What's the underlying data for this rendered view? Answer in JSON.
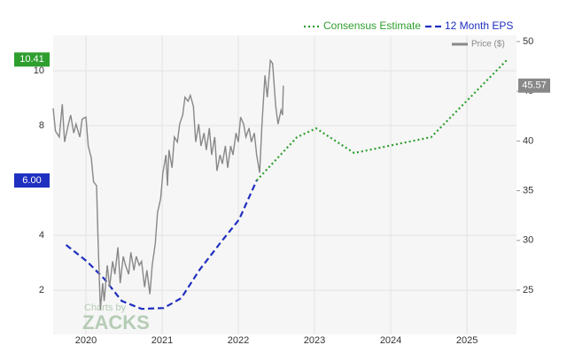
{
  "chart_data": {
    "type": "line",
    "xlim": [
      2019.57,
      2025.65
    ],
    "xticks": [
      2020,
      2021,
      2022,
      2023,
      2024,
      2025
    ],
    "ylim": [
      0.39,
      11.29
    ],
    "yticks": [
      2,
      4,
      8,
      10
    ],
    "y2lim": [
      20.55,
      50.62
    ],
    "y2ticks": [
      25,
      30,
      35,
      40,
      45,
      50
    ],
    "grid": true,
    "watermark": [
      "Charts by",
      "ZACKS"
    ],
    "series": [
      {
        "name": "Consensus Estimate",
        "color": "#2e9e2e",
        "style": "dotted",
        "legend_row": 0,
        "end_label": "10.41",
        "x": [
          2022.24,
          2022.77,
          2023.02,
          2023.52,
          2024.53,
          2025.53
        ],
        "values": [
          6.0,
          7.58,
          7.9,
          7.0,
          7.58,
          10.41
        ]
      },
      {
        "name": "12 Month EPS",
        "color": "#1f2fbf",
        "style": "dashed",
        "legend_row": 0,
        "end_label": "6.00",
        "x": [
          2019.74,
          2020.01,
          2020.24,
          2020.47,
          2020.73,
          2021.02,
          2021.25,
          2021.49,
          2021.76,
          2022.01,
          2022.24
        ],
        "values": [
          3.65,
          3.06,
          2.42,
          1.61,
          1.32,
          1.35,
          1.71,
          2.74,
          3.71,
          4.58,
          6.0
        ]
      },
      {
        "name": "Price ($)",
        "color": "#888888",
        "style": "solid",
        "legend_row": 1,
        "axis": "y2",
        "end_label": "45.57",
        "x": [
          2019.57,
          2019.6,
          2019.65,
          2019.69,
          2019.72,
          2019.77,
          2019.8,
          2019.84,
          2019.87,
          2019.92,
          2019.95,
          2020.0,
          2020.03,
          2020.07,
          2020.1,
          2020.14,
          2020.16,
          2020.19,
          2020.22,
          2020.24,
          2020.28,
          2020.31,
          2020.35,
          2020.38,
          2020.42,
          2020.45,
          2020.49,
          2020.52,
          2020.56,
          2020.59,
          2020.63,
          2020.66,
          2020.7,
          2020.73,
          2020.77,
          2020.8,
          2020.84,
          2020.87,
          2020.91,
          2020.94,
          2020.98,
          2021.01,
          2021.05,
          2021.07,
          2021.09,
          2021.13,
          2021.16,
          2021.2,
          2021.23,
          2021.27,
          2021.3,
          2021.34,
          2021.37,
          2021.41,
          2021.44,
          2021.48,
          2021.51,
          2021.55,
          2021.58,
          2021.62,
          2021.65,
          2021.69,
          2021.72,
          2021.76,
          2021.79,
          2021.83,
          2021.86,
          2021.9,
          2021.93,
          2021.97,
          2022.0,
          2022.03,
          2022.07,
          2022.1,
          2022.14,
          2022.17,
          2022.21,
          2022.24,
          2022.28,
          2022.31,
          2022.35,
          2022.38,
          2022.42,
          2022.45,
          2022.49,
          2022.52,
          2022.56,
          2022.58,
          2022.59
        ],
        "values": [
          43.3,
          41.0,
          40.4,
          43.7,
          39.9,
          41.7,
          42.6,
          40.8,
          41.7,
          40.4,
          42.2,
          42.4,
          39.5,
          38.3,
          35.9,
          35.5,
          29.7,
          23.0,
          25.7,
          23.9,
          27.5,
          25.3,
          27.9,
          26.6,
          29.3,
          25.7,
          28.4,
          27.5,
          26.6,
          28.8,
          27.0,
          28.4,
          27.5,
          27.9,
          25.3,
          27.0,
          24.6,
          27.5,
          29.7,
          32.8,
          34.2,
          36.8,
          38.6,
          35.5,
          39.1,
          37.3,
          40.4,
          39.9,
          41.7,
          42.6,
          44.4,
          44.0,
          44.6,
          43.5,
          39.9,
          41.7,
          39.5,
          40.8,
          39.1,
          41.3,
          38.6,
          40.4,
          37.0,
          38.6,
          37.7,
          39.5,
          37.3,
          39.5,
          38.6,
          40.8,
          39.9,
          42.4,
          41.7,
          40.4,
          41.3,
          39.9,
          40.8,
          38.6,
          36.8,
          41.7,
          46.6,
          44.4,
          48.1,
          47.8,
          43.5,
          41.7,
          43.1,
          42.6,
          45.57
        ]
      }
    ]
  }
}
